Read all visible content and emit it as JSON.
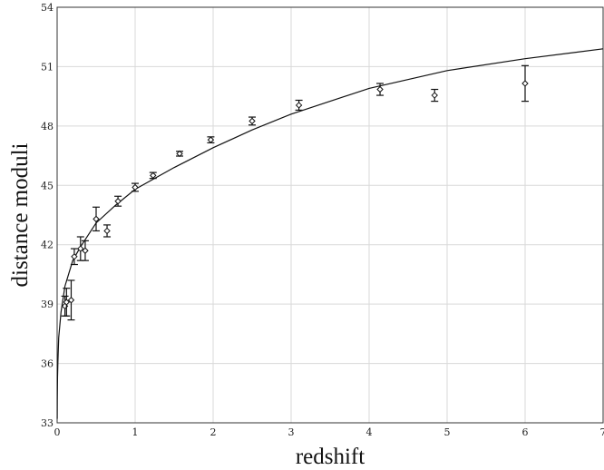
{
  "chart_data": {
    "type": "scatter",
    "title": "",
    "xlabel": "redshift",
    "ylabel": "distance moduli",
    "xlim": [
      0,
      7
    ],
    "ylim": [
      33,
      54
    ],
    "xticks": [
      0,
      1,
      2,
      3,
      4,
      5,
      6,
      7
    ],
    "yticks": [
      33,
      36,
      39,
      42,
      45,
      48,
      51,
      54
    ],
    "grid": true,
    "legend": "none",
    "series": [
      {
        "kind": "points_with_error_bars",
        "marker": "diamond",
        "points": [
          {
            "x": 0.1,
            "y": 38.9,
            "err": 0.5
          },
          {
            "x": 0.12,
            "y": 39.1,
            "err": 0.7
          },
          {
            "x": 0.18,
            "y": 39.2,
            "err": 1.0
          },
          {
            "x": 0.22,
            "y": 41.4,
            "err": 0.4
          },
          {
            "x": 0.3,
            "y": 41.8,
            "err": 0.6
          },
          {
            "x": 0.36,
            "y": 41.7,
            "err": 0.5
          },
          {
            "x": 0.5,
            "y": 43.3,
            "err": 0.6
          },
          {
            "x": 0.64,
            "y": 42.7,
            "err": 0.3
          },
          {
            "x": 0.78,
            "y": 44.2,
            "err": 0.25
          },
          {
            "x": 1.0,
            "y": 44.9,
            "err": 0.2
          },
          {
            "x": 1.23,
            "y": 45.5,
            "err": 0.15
          },
          {
            "x": 1.57,
            "y": 46.6,
            "err": 0.12
          },
          {
            "x": 1.97,
            "y": 47.3,
            "err": 0.15
          },
          {
            "x": 2.5,
            "y": 48.25,
            "err": 0.2
          },
          {
            "x": 3.1,
            "y": 49.05,
            "err": 0.25
          },
          {
            "x": 4.14,
            "y": 49.85,
            "err": 0.3
          },
          {
            "x": 4.84,
            "y": 49.55,
            "err": 0.3
          },
          {
            "x": 6.0,
            "y": 50.15,
            "err": 0.9
          }
        ]
      },
      {
        "kind": "fit_curve",
        "x": [
          0.001,
          0.002,
          0.005,
          0.01,
          0.02,
          0.05,
          0.1,
          0.2,
          0.3,
          0.5,
          0.75,
          1.0,
          1.5,
          2.0,
          2.5,
          3.0,
          4.0,
          5.0,
          6.0,
          7.0
        ],
        "y": [
          33.2,
          34.1,
          35.3,
          36.1,
          37.3,
          38.6,
          39.9,
          41.2,
          41.9,
          43.1,
          44.0,
          44.8,
          45.9,
          46.9,
          47.8,
          48.6,
          49.9,
          50.8,
          51.4,
          51.9
        ]
      }
    ]
  }
}
